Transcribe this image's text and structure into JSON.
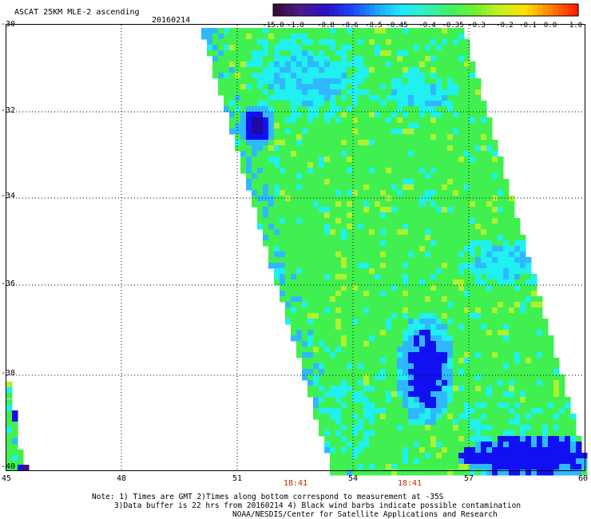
{
  "header": {
    "title": "ASCAT 25KM MLE-2 ascending",
    "date": "20160214"
  },
  "colorbar": {
    "labels": [
      "-15.0",
      "-1.0",
      "-0.8",
      "-0.6",
      "-0.5",
      "-0.45",
      "-0.4",
      "-0.35",
      "-0.3",
      "-0.2",
      "-0.1",
      "0.0",
      "1.0"
    ],
    "colors": [
      "#3a0a3a",
      "#4a1a8a",
      "#2a10c8",
      "#1a40ff",
      "#1aa0ff",
      "#20e8ff",
      "#30f0c0",
      "#40f060",
      "#70f030",
      "#c8f020",
      "#ffe000",
      "#ff8000",
      "#ff2000"
    ]
  },
  "axes": {
    "lat_labels": [
      "-30",
      "-32",
      "-34",
      "-36",
      "-38",
      "-40"
    ],
    "lon_labels": [
      "45",
      "48",
      "51",
      "54",
      "57",
      "60"
    ]
  },
  "times": [
    "18:41",
    "18:41"
  ],
  "notes": [
    "Note: 1) Times are GMT 2)Times along bottom correspond to measurement at -35S",
    "3)Data buffer is 22 hrs from 20160214 4) Black wind barbs indicate possible contamination",
    "NOAA/NESDIS/Center for Satellite Applications and Research"
  ],
  "palette": {
    "green": "#40f050",
    "cyan": "#20f0f0",
    "light_blue": "#30b8ff",
    "blue": "#1010f0",
    "dark_blue": "#2008a0",
    "purple": "#4a0a80",
    "yellow_green": "#b0f030"
  }
}
